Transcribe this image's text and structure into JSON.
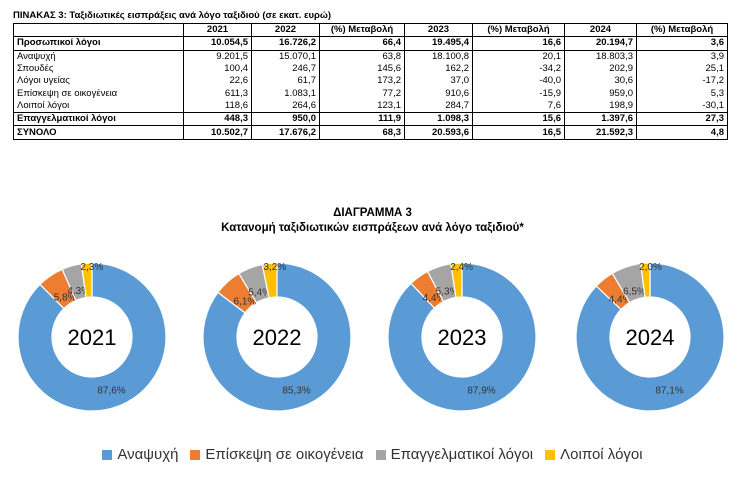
{
  "table": {
    "title": "ΠΙΝΑΚΑΣ 3: Ταξιδιωτικές εισπράξεις ανά λόγο ταξιδιού (σε εκατ. ευρώ)",
    "headers": [
      "",
      "2021",
      "2022",
      "(%) Μεταβολή",
      "2023",
      "(%) Μεταβολή",
      "2024",
      "(%) Μεταβολή"
    ],
    "rows": [
      {
        "label": "Προσωπικοί λόγοι",
        "bold": true,
        "values": [
          "10.054,5",
          "16.726,2",
          "66,4",
          "19.495,4",
          "16,6",
          "20.194,7",
          "3,6"
        ]
      },
      {
        "label": "Αναψυχή",
        "bold": false,
        "values": [
          "9.201,5",
          "15.070,1",
          "63,8",
          "18.100,8",
          "20,1",
          "18.803,3",
          "3,9"
        ]
      },
      {
        "label": "Σπουδές",
        "bold": false,
        "values": [
          "100,4",
          "246,7",
          "145,6",
          "162,2",
          "-34,2",
          "202,9",
          "25,1"
        ]
      },
      {
        "label": "Λόγοι υγείας",
        "bold": false,
        "values": [
          "22,6",
          "61,7",
          "173,2",
          "37,0",
          "-40,0",
          "30,6",
          "-17,2"
        ]
      },
      {
        "label": "Επίσκεψη σε οικογένεια",
        "bold": false,
        "values": [
          "611,3",
          "1.083,1",
          "77,2",
          "910,6",
          "-15,9",
          "959,0",
          "5,3"
        ]
      },
      {
        "label": "Λοιποί λόγοι",
        "bold": false,
        "values": [
          "118,6",
          "264,6",
          "123,1",
          "284,7",
          "7,6",
          "198,9",
          "-30,1"
        ]
      },
      {
        "label": "Επαγγελματικοί λόγοι",
        "bold": true,
        "values": [
          "448,3",
          "950,0",
          "111,9",
          "1.098,3",
          "15,6",
          "1.397,6",
          "27,3"
        ]
      },
      {
        "label": "ΣΥΝΟΛΟ",
        "bold": true,
        "values": [
          "10.502,7",
          "17.676,2",
          "68,3",
          "20.593,6",
          "16,5",
          "21.592,3",
          "4,8"
        ]
      }
    ]
  },
  "diagram": {
    "title": "ΔΙΑΓΡΑΜΜΑ 3",
    "subtitle": "Κατανομή ταξιδιωτικών εισπράξεων ανά λόγο ταξιδιού*"
  },
  "chart_data": {
    "type": "pie",
    "variant": "donut",
    "categories": [
      "Αναψυχή",
      "Επίσκεψη σε οικογένεια",
      "Επαγγελματικοί λόγοι",
      "Λοιποί λόγοι"
    ],
    "colors": [
      "#5B9BD5",
      "#ED7D31",
      "#A5A5A5",
      "#FFC000"
    ],
    "legend_position": "bottom",
    "charts": [
      {
        "year": "2021",
        "values": [
          87.6,
          5.8,
          4.3,
          2.3
        ],
        "labels": [
          "87,6%",
          "5,8%",
          "4,3%",
          "2,3%"
        ]
      },
      {
        "year": "2022",
        "values": [
          85.3,
          6.1,
          5.4,
          3.2
        ],
        "labels": [
          "85,3%",
          "6,1%",
          "5,4%",
          "3,2%"
        ]
      },
      {
        "year": "2023",
        "values": [
          87.9,
          4.4,
          5.3,
          2.4
        ],
        "labels": [
          "87,9%",
          "4,4%",
          "5,3%",
          "2,4%"
        ]
      },
      {
        "year": "2024",
        "values": [
          87.1,
          4.4,
          6.5,
          2.0
        ],
        "labels": [
          "87,1%",
          "4,4%",
          "6,5%",
          "2,0%"
        ]
      }
    ]
  }
}
